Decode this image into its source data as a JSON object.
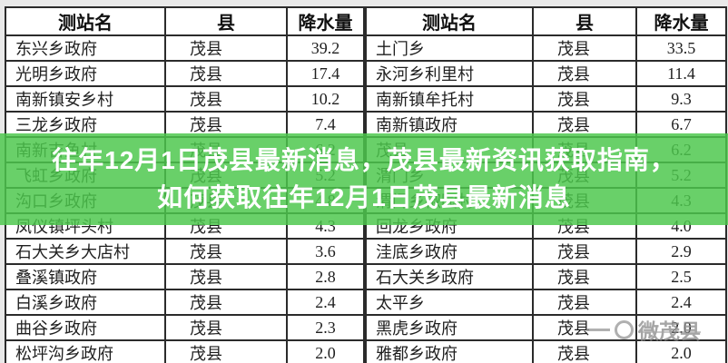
{
  "chart_data": [
    {
      "type": "table",
      "title": "left-rainfall-table",
      "columns": [
        "测站名",
        "县",
        "降水量"
      ],
      "rows": [
        [
          "东兴乡政府",
          "茂县",
          "39.2"
        ],
        [
          "光明乡政府",
          "茂县",
          "17.4"
        ],
        [
          "南新镇安乡村",
          "茂县",
          "10.2"
        ],
        [
          "三龙乡政府",
          "茂县",
          "7.4"
        ],
        [
          "南新吉鱼村",
          "茂县",
          "6.2"
        ],
        [
          "飞虹乡政府",
          "茂县",
          "5.2"
        ],
        [
          "沟口乡政府",
          "茂县",
          "4.8"
        ],
        [
          "凤仪镇坪头村",
          "茂县",
          "4.3"
        ],
        [
          "石大关乡大店村",
          "茂县",
          "3.6"
        ],
        [
          "叠溪镇政府",
          "茂县",
          "2.8"
        ],
        [
          "白溪乡政府",
          "茂县",
          "2.4"
        ],
        [
          "曲谷乡政府",
          "茂县",
          "2.3"
        ],
        [
          "松坪沟乡政府",
          "茂县",
          "2.0"
        ]
      ]
    },
    {
      "type": "table",
      "title": "right-rainfall-table",
      "columns": [
        "测站名",
        "县",
        "降水量"
      ],
      "rows": [
        [
          "土门乡",
          "茂县",
          "33.5"
        ],
        [
          "永河乡利里村",
          "茂县",
          "11.4"
        ],
        [
          "南新镇牟托村",
          "茂县",
          "9.3"
        ],
        [
          "南新镇政府",
          "茂县",
          "6.7"
        ],
        [
          "茂县",
          "茂县",
          "6.2"
        ],
        [
          "渭门乡",
          "茂县",
          "5.2"
        ],
        [
          "渭门乡椒园村",
          "茂县",
          "4.3"
        ],
        [
          "回龙乡政府",
          "茂县",
          "4.0"
        ],
        [
          "洼底乡政府",
          "茂县",
          "2.9"
        ],
        [
          "石大关乡政府",
          "茂县",
          "2.5"
        ],
        [
          "太平乡",
          "茂县",
          "2.4"
        ],
        [
          "黑虎乡政府",
          "茂县",
          "2.0"
        ],
        [
          "雅都乡政府",
          "茂县",
          "2.0"
        ]
      ]
    }
  ],
  "overlay": {
    "line1": "往年12月1日茂县最新消息，茂县最新资讯获取指南，",
    "line2": "如何获取往年12月1日茂县最新消息",
    "background_color": "#4cc74c",
    "text_color": "#ffffff"
  },
  "watermark": {
    "text": "微茂县",
    "color": "#8d8d8d"
  },
  "colors": {
    "precip_value_text": "#2e3b52",
    "table_border": "#2b2b2b",
    "cell_text": "#1f1f1f"
  }
}
